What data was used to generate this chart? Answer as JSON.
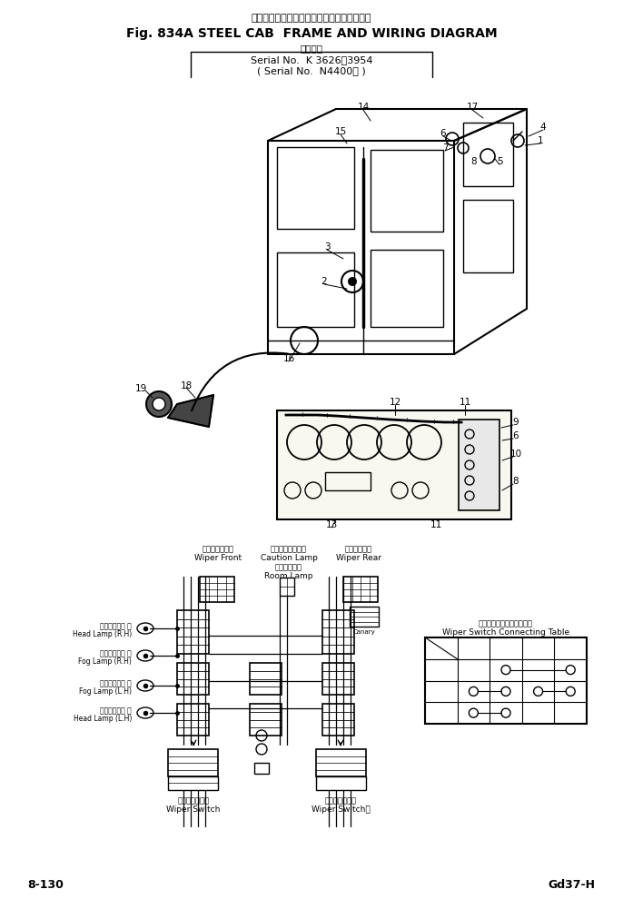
{
  "title_japanese": "スチールキャブ．フレームおよび配　線　図",
  "title_english": "Fig. 834A STEEL CAB  FRAME AND WIRING DIAGRAM",
  "subtitle0": "通用号機",
  "subtitle1": "Serial No.  K 3626～3954",
  "subtitle2": "( Serial No.  N4400～ )",
  "footer_left": "8-130",
  "footer_right": "Gd37-H",
  "bg_color": "#ffffff",
  "text_color": "#000000"
}
